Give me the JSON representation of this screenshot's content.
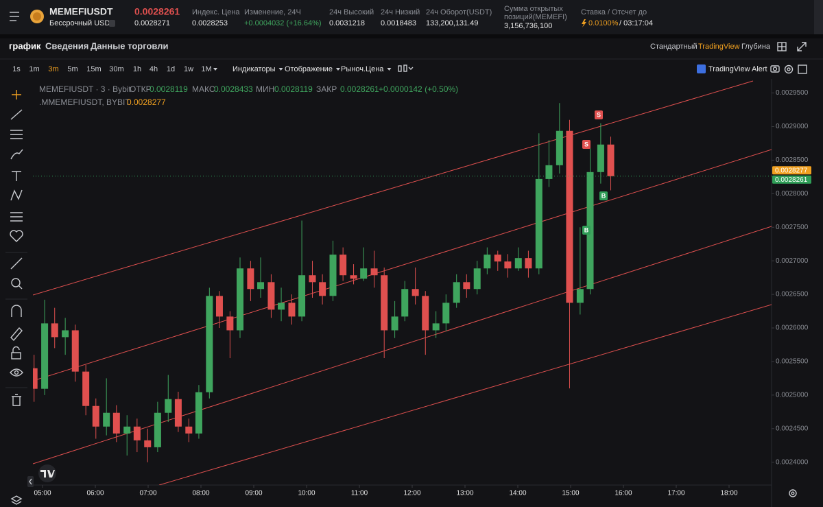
{
  "header": {
    "symbol": "MEMEFIUSDT",
    "contract": "Бессрочный USDT",
    "last_price": "0.0028261",
    "mark_price": "0.0028271",
    "stats": [
      {
        "label_lines": [
          "Индекс. Цена"
        ],
        "value": "0.0028253"
      },
      {
        "label_lines": [
          "Изменение, 24Ч"
        ],
        "value": "+0.0004032 (+16.64%)"
      },
      {
        "label_lines": [
          "24ч Высокий"
        ],
        "value": "0.0031218"
      },
      {
        "label_lines": [
          "24ч Низкий"
        ],
        "value": "0.0018483"
      },
      {
        "label_lines": [
          "24ч Оборот(USDT)"
        ],
        "value": "133,200,131.49"
      },
      {
        "label_lines": [
          "Сумма открытых",
          "позиций(MEMEFI)"
        ],
        "value": "3,156,736,100"
      }
    ],
    "funding": {
      "label": "Ставка / Отсчет до",
      "rate": "0.0100%",
      "countdown": "/ 03:17:04"
    }
  },
  "tabs": [
    "график",
    "Сведения",
    "Данные торговли"
  ],
  "views": [
    "Стандартный",
    "TradingView",
    "Глубина"
  ],
  "intervals": [
    "1s",
    "1m",
    "3m",
    "5m",
    "15m",
    "30m",
    "1h",
    "4h",
    "1d",
    "1w",
    "1M"
  ],
  "menus": [
    "Индикаторы",
    "Отображение",
    "Рыноч.Цена"
  ],
  "alert": "TradingView Alert",
  "chart_data": {
    "type": "candlestick",
    "legend": {
      "title": "MEMEFIUSDT · 3 · Bybit",
      "open_label": "ОТКР",
      "open": "0.0028119",
      "high_label": "МАКС",
      "high": "0.0028433",
      "low_label": "МИН",
      "low": "0.0028119",
      "close_label": "ЗАКР",
      "close": "0.0028261",
      "change": "+0.0000142 (+0.50%)",
      "index_title": ".MMEMEFIUSDT, BYBIT",
      "index_value": "0.0028277"
    },
    "up_color": "#3fa55e",
    "down_color": "#e0504f",
    "xlim": [
      4.818,
      18.805
    ],
    "xticks": [
      {
        "value": 5,
        "label": "05:00"
      },
      {
        "value": 6,
        "label": "06:00"
      },
      {
        "value": 7,
        "label": "07:00"
      },
      {
        "value": 8,
        "label": "08:00"
      },
      {
        "value": 9,
        "label": "09:00"
      },
      {
        "value": 10,
        "label": "10:00"
      },
      {
        "value": 11,
        "label": "11:00"
      },
      {
        "value": 12,
        "label": "12:00"
      },
      {
        "value": 13,
        "label": "13:00"
      },
      {
        "value": 14,
        "label": "14:00"
      },
      {
        "value": 15,
        "label": "15:00"
      },
      {
        "value": 16,
        "label": "16:00"
      },
      {
        "value": 17,
        "label": "17:00"
      },
      {
        "value": 18,
        "label": "18:00"
      }
    ],
    "ylim": [
      0.002366,
      0.002971
    ],
    "yticks": [
      {
        "value": 0.0024,
        "label": "0.0024000"
      },
      {
        "value": 0.00245,
        "label": "0.0024500"
      },
      {
        "value": 0.0025,
        "label": "0.0025000"
      },
      {
        "value": 0.00255,
        "label": "0.0025500"
      },
      {
        "value": 0.0026,
        "label": "0.0026000"
      },
      {
        "value": 0.00265,
        "label": "0.0026500"
      },
      {
        "value": 0.0027,
        "label": "0.0027000"
      },
      {
        "value": 0.00275,
        "label": "0.0027500"
      },
      {
        "value": 0.0028,
        "label": "0.0028000"
      },
      {
        "value": 0.00285,
        "label": "0.0028500"
      },
      {
        "value": 0.0029,
        "label": "0.0029000"
      },
      {
        "value": 0.00295,
        "label": "0.0029500"
      }
    ],
    "price_tags": [
      {
        "value": 0.0028277,
        "color": "#f0a020"
      },
      {
        "value": 0.0028261,
        "color": "#2f9e57"
      }
    ],
    "markers": [
      "S",
      "S",
      "B",
      "B"
    ],
    "candles": [
      {
        "x": 4.84,
        "o": 0.00254,
        "h": 0.00256,
        "l": 0.00249,
        "c": 0.0025094
      },
      {
        "x": 5.04,
        "o": 0.0025094,
        "h": 0.002642,
        "l": 0.0025,
        "c": 0.0026068
      },
      {
        "x": 5.23,
        "o": 0.0026068,
        "h": 0.00263,
        "l": 0.00257,
        "c": 0.0025863
      },
      {
        "x": 5.43,
        "o": 0.0025863,
        "h": 0.002615,
        "l": 0.00256,
        "c": 0.0025965
      },
      {
        "x": 5.62,
        "o": 0.0025965,
        "h": 0.002605,
        "l": 0.00252,
        "c": 0.002535
      },
      {
        "x": 5.82,
        "o": 0.002535,
        "h": 0.002545,
        "l": 0.00247,
        "c": 0.0024838
      },
      {
        "x": 6.01,
        "o": 0.0024838,
        "h": 0.002495,
        "l": 0.002435,
        "c": 0.0024531
      },
      {
        "x": 6.21,
        "o": 0.0024531,
        "h": 0.002525,
        "l": 0.00244,
        "c": 0.0024736
      },
      {
        "x": 6.4,
        "o": 0.0024736,
        "h": 0.002485,
        "l": 0.00243,
        "c": 0.0024428
      },
      {
        "x": 6.6,
        "o": 0.0024428,
        "h": 0.00247,
        "l": 0.00241,
        "c": 0.0024531
      },
      {
        "x": 6.79,
        "o": 0.0024531,
        "h": 0.002465,
        "l": 0.002415,
        "c": 0.0024326
      },
      {
        "x": 6.99,
        "o": 0.0024326,
        "h": 0.00245,
        "l": 0.0024,
        "c": 0.0024223
      },
      {
        "x": 7.18,
        "o": 0.0024223,
        "h": 0.00249,
        "l": 0.002415,
        "c": 0.0024736
      },
      {
        "x": 7.38,
        "o": 0.0024736,
        "h": 0.00253,
        "l": 0.00246,
        "c": 0.002494
      },
      {
        "x": 7.57,
        "o": 0.002494,
        "h": 0.002505,
        "l": 0.002445,
        "c": 0.0024531
      },
      {
        "x": 7.77,
        "o": 0.0024531,
        "h": 0.002465,
        "l": 0.00243,
        "c": 0.0024428
      },
      {
        "x": 7.96,
        "o": 0.0024428,
        "h": 0.002515,
        "l": 0.002435,
        "c": 0.0025043
      },
      {
        "x": 8.16,
        "o": 0.0025043,
        "h": 0.00266,
        "l": 0.002495,
        "c": 0.0026477
      },
      {
        "x": 8.35,
        "o": 0.0026477,
        "h": 0.002655,
        "l": 0.0026,
        "c": 0.002617
      },
      {
        "x": 8.55,
        "o": 0.002617,
        "h": 0.002625,
        "l": 0.002555,
        "c": 0.0025965
      },
      {
        "x": 8.74,
        "o": 0.0025965,
        "h": 0.002705,
        "l": 0.002585,
        "c": 0.0026887
      },
      {
        "x": 8.94,
        "o": 0.0026887,
        "h": 0.0027,
        "l": 0.00264,
        "c": 0.002658
      },
      {
        "x": 9.13,
        "o": 0.002658,
        "h": 0.002705,
        "l": 0.002645,
        "c": 0.0026682
      },
      {
        "x": 9.33,
        "o": 0.0026682,
        "h": 0.00268,
        "l": 0.002615,
        "c": 0.0026273
      },
      {
        "x": 9.52,
        "o": 0.0026273,
        "h": 0.00266,
        "l": 0.00261,
        "c": 0.0026375
      },
      {
        "x": 9.72,
        "o": 0.0026375,
        "h": 0.00265,
        "l": 0.002605,
        "c": 0.002617
      },
      {
        "x": 9.91,
        "o": 0.002617,
        "h": 0.00276,
        "l": 0.00261,
        "c": 0.0026785
      },
      {
        "x": 10.11,
        "o": 0.0026785,
        "h": 0.0027,
        "l": 0.002645,
        "c": 0.0026682
      },
      {
        "x": 10.3,
        "o": 0.0026682,
        "h": 0.00268,
        "l": 0.002635,
        "c": 0.0026477
      },
      {
        "x": 10.5,
        "o": 0.0026477,
        "h": 0.00273,
        "l": 0.00264,
        "c": 0.0027092
      },
      {
        "x": 10.69,
        "o": 0.0027092,
        "h": 0.00272,
        "l": 0.00267,
        "c": 0.0026785
      },
      {
        "x": 10.89,
        "o": 0.0026785,
        "h": 0.002695,
        "l": 0.002665,
        "c": 0.0026734
      },
      {
        "x": 11.08,
        "o": 0.0026734,
        "h": 0.00272,
        "l": 0.00267,
        "c": 0.0026887
      },
      {
        "x": 11.28,
        "o": 0.0026887,
        "h": 0.002715,
        "l": 0.00266,
        "c": 0.0026785
      },
      {
        "x": 11.47,
        "o": 0.0026785,
        "h": 0.00269,
        "l": 0.002555,
        "c": 0.0025965
      },
      {
        "x": 11.67,
        "o": 0.0025965,
        "h": 0.00264,
        "l": 0.002585,
        "c": 0.002617
      },
      {
        "x": 11.86,
        "o": 0.002617,
        "h": 0.00267,
        "l": 0.00261,
        "c": 0.002658
      },
      {
        "x": 12.06,
        "o": 0.002658,
        "h": 0.00269,
        "l": 0.002635,
        "c": 0.0026477
      },
      {
        "x": 12.25,
        "o": 0.0026477,
        "h": 0.002655,
        "l": 0.00256,
        "c": 0.0025965
      },
      {
        "x": 12.45,
        "o": 0.0025965,
        "h": 0.002625,
        "l": 0.002585,
        "c": 0.0026068
      },
      {
        "x": 12.64,
        "o": 0.0026068,
        "h": 0.00265,
        "l": 0.002595,
        "c": 0.0026375
      },
      {
        "x": 12.84,
        "o": 0.0026375,
        "h": 0.00268,
        "l": 0.00263,
        "c": 0.0026682
      },
      {
        "x": 13.03,
        "o": 0.0026682,
        "h": 0.00268,
        "l": 0.002645,
        "c": 0.002658
      },
      {
        "x": 13.23,
        "o": 0.002658,
        "h": 0.0027,
        "l": 0.00265,
        "c": 0.0026887
      },
      {
        "x": 13.42,
        "o": 0.0026887,
        "h": 0.00272,
        "l": 0.00268,
        "c": 0.0027092
      },
      {
        "x": 13.62,
        "o": 0.0027092,
        "h": 0.002715,
        "l": 0.002685,
        "c": 0.002699
      },
      {
        "x": 13.81,
        "o": 0.002699,
        "h": 0.00271,
        "l": 0.002675,
        "c": 0.0026887
      },
      {
        "x": 14.01,
        "o": 0.0026887,
        "h": 0.00272,
        "l": 0.002685,
        "c": 0.0027041
      },
      {
        "x": 14.2,
        "o": 0.0027041,
        "h": 0.002715,
        "l": 0.002675,
        "c": 0.0026887
      },
      {
        "x": 14.4,
        "o": 0.0026887,
        "h": 0.00289,
        "l": 0.00268,
        "c": 0.0028219
      },
      {
        "x": 14.59,
        "o": 0.0028219,
        "h": 0.00288,
        "l": 0.00281,
        "c": 0.0028424
      },
      {
        "x": 14.79,
        "o": 0.0028424,
        "h": 0.002935,
        "l": 0.00283,
        "c": 0.0028936
      },
      {
        "x": 14.98,
        "o": 0.0028936,
        "h": 0.00291,
        "l": 0.00251,
        "c": 0.0026375
      },
      {
        "x": 15.18,
        "o": 0.0026375,
        "h": 0.00275,
        "l": 0.00262,
        "c": 0.002658
      },
      {
        "x": 15.37,
        "o": 0.002658,
        "h": 0.00287,
        "l": 0.00265,
        "c": 0.0028322
      },
      {
        "x": 15.57,
        "o": 0.0028322,
        "h": 0.002905,
        "l": 0.002815,
        "c": 0.0028732
      },
      {
        "x": 15.76,
        "o": 0.0028732,
        "h": 0.002885,
        "l": 0.002805,
        "c": 0.0028261
      }
    ]
  }
}
